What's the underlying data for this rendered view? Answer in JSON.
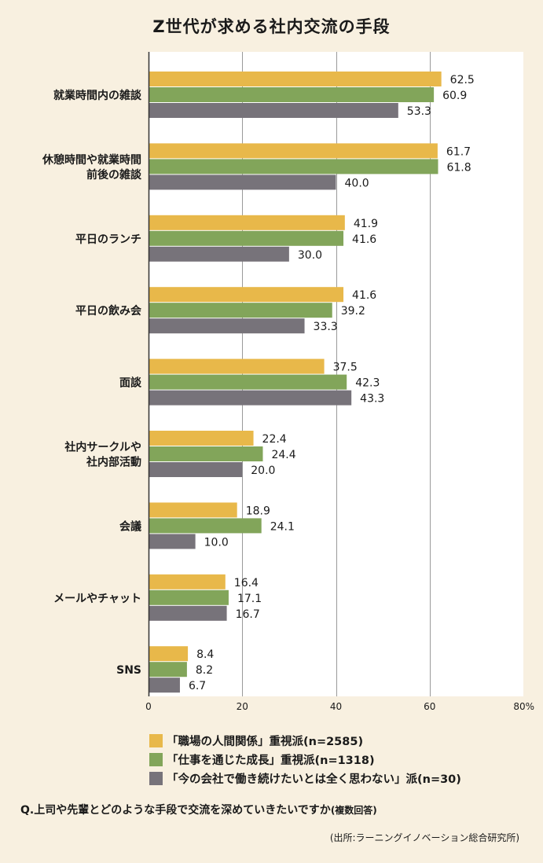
{
  "title": "Z世代が求める社内交流の手段",
  "chart_data": {
    "type": "bar",
    "orientation": "horizontal",
    "title": "Z世代が求める社内交流の手段",
    "categories": [
      [
        "就業時間内の雑談"
      ],
      [
        "休憩時間や就業時間",
        "前後の雑談"
      ],
      [
        "平日のランチ"
      ],
      [
        "平日の飲み会"
      ],
      [
        "面談"
      ],
      [
        "社内サークルや",
        "社内部活動"
      ],
      [
        "会議"
      ],
      [
        "メールやチャット"
      ],
      [
        "SNS"
      ]
    ],
    "series": [
      {
        "name": "「職場の人間関係」重視派(n=2585)",
        "color": "#e8b84a",
        "values": [
          62.5,
          61.7,
          41.9,
          41.6,
          37.5,
          22.4,
          18.9,
          16.4,
          8.4
        ]
      },
      {
        "name": "「仕事を通じた成長」重視派(n=1318)",
        "color": "#82a55a",
        "values": [
          60.9,
          61.8,
          41.6,
          39.2,
          42.3,
          24.4,
          24.1,
          17.1,
          8.2
        ]
      },
      {
        "name": "「今の会社で働き続けたいとは全く思わない」派(n=30)",
        "color": "#77737a",
        "values": [
          53.3,
          40.0,
          30.0,
          33.3,
          43.3,
          20.0,
          10.0,
          16.7,
          6.7
        ]
      }
    ],
    "xlim": [
      0,
      80
    ],
    "xticks": [
      "0",
      "20",
      "40",
      "60",
      "80%"
    ],
    "value_format_decimals": 1,
    "grid": true,
    "legend_position": "bottom"
  },
  "question": "Q.上司や先輩とどのような手段で交流を深めていきたいですか",
  "question_note": "(複数回答)",
  "source": "(出所:ラーニングイノベーション総合研究所)"
}
